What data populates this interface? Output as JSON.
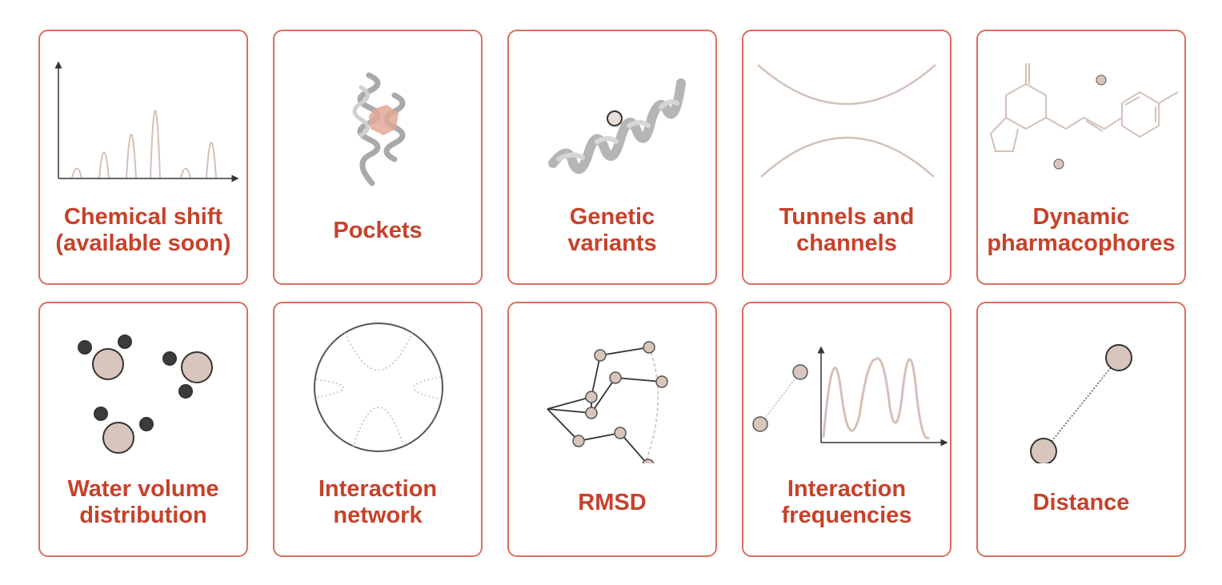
{
  "cards": [
    {
      "label": "Chemical shift\n(available soon)",
      "icon": "spectrum-icon"
    },
    {
      "label": "Pockets",
      "icon": "protein-pocket-icon"
    },
    {
      "label": "Genetic\nvariants",
      "icon": "helix-variant-icon"
    },
    {
      "label": "Tunnels and\nchannels",
      "icon": "tunnel-icon"
    },
    {
      "label": "Dynamic\npharmacophores",
      "icon": "molecule-icon"
    },
    {
      "label": "Water volume\ndistribution",
      "icon": "water-molecules-icon"
    },
    {
      "label": "Interaction\nnetwork",
      "icon": "chord-network-icon"
    },
    {
      "label": "RMSD",
      "icon": "rmsd-structure-icon"
    },
    {
      "label": "Interaction\nfrequencies",
      "icon": "frequency-plot-icon"
    },
    {
      "label": "Distance",
      "icon": "distance-icon"
    }
  ],
  "colors": {
    "border": "#d9705a",
    "label": "#c7412a",
    "line_beige": "#d4c1b8",
    "atom_fill": "#d8c6bc",
    "dark": "#3a3a3a"
  }
}
